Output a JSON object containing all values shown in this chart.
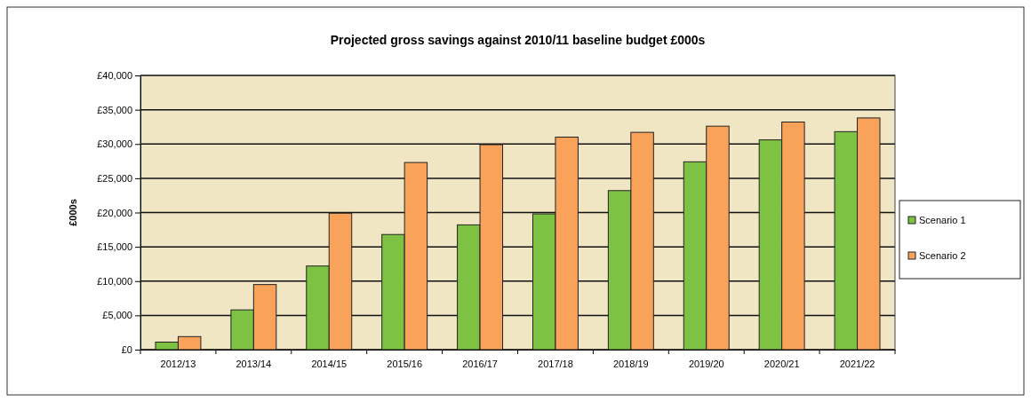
{
  "chart_data": {
    "type": "bar",
    "title": "Projected gross savings against 2010/11 baseline budget £000s",
    "ylabel": "£000s",
    "categories": [
      "2012/13",
      "2013/14",
      "2014/15",
      "2015/16",
      "2016/17",
      "2017/18",
      "2018/19",
      "2019/20",
      "2020/21",
      "2021/22"
    ],
    "series": [
      {
        "name": "Scenario 1",
        "color": "#7dc242",
        "values": [
          1100,
          5800,
          12200,
          16800,
          18200,
          19800,
          23200,
          27400,
          30600,
          31800
        ]
      },
      {
        "name": "Scenario 2",
        "color": "#f9a25a",
        "values": [
          1900,
          9500,
          19900,
          27300,
          29900,
          31000,
          31700,
          32600,
          33200,
          33800
        ]
      }
    ],
    "ylim": [
      0,
      40000
    ],
    "yticks": [
      {
        "value": 0,
        "label": "£0"
      },
      {
        "value": 5000,
        "label": "£5,000"
      },
      {
        "value": 10000,
        "label": "£10,000"
      },
      {
        "value": 15000,
        "label": "£15,000"
      },
      {
        "value": 20000,
        "label": "£20,000"
      },
      {
        "value": 25000,
        "label": "£25,000"
      },
      {
        "value": 30000,
        "label": "£30,000"
      },
      {
        "value": 35000,
        "label": "£35,000"
      },
      {
        "value": 40000,
        "label": "£40,000"
      }
    ],
    "grid": "y",
    "legend": "right"
  }
}
